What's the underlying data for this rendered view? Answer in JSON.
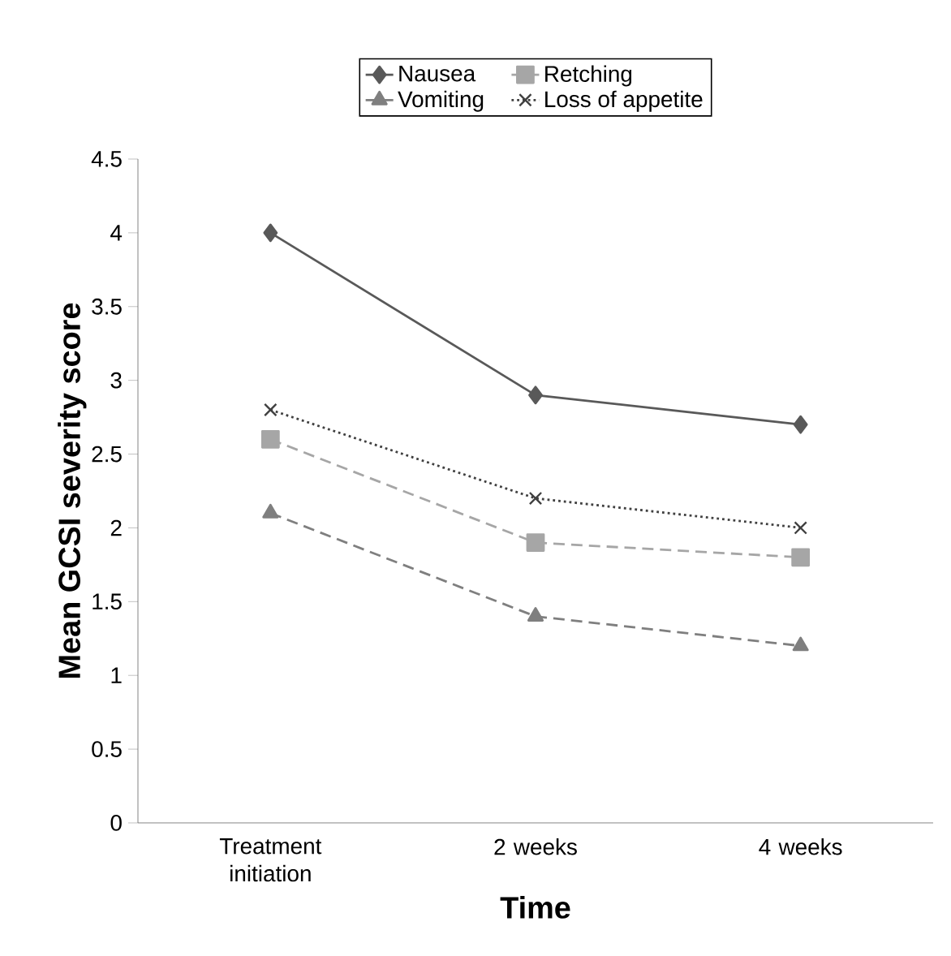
{
  "chart_data": {
    "type": "line",
    "xlabel": "Time",
    "ylabel": "Mean GCSI severity score",
    "categories": [
      "Treatment initiation",
      "2 weeks",
      "4 weeks"
    ],
    "series": [
      {
        "name": "Nausea",
        "color": "#595959",
        "marker": "diamond",
        "line_style": "solid",
        "values": [
          4,
          2.9,
          2.7
        ]
      },
      {
        "name": "Retching",
        "color": "#a6a6a6",
        "marker": "square",
        "line_style": "dashed",
        "values": [
          2.6,
          1.9,
          1.8
        ]
      },
      {
        "name": "Vomiting",
        "color": "#7f7f7f",
        "marker": "triangle",
        "line_style": "dashed",
        "values": [
          2.1,
          1.4,
          1.2
        ]
      },
      {
        "name": "Loss of appetite",
        "color": "#404040",
        "marker": "cross",
        "line_style": "dotted",
        "values": [
          2.8,
          2.2,
          2.0
        ]
      }
    ],
    "ylim": [
      0,
      4.5
    ],
    "yticks": [
      0,
      0.5,
      1,
      1.5,
      2,
      2.5,
      3,
      3.5,
      4,
      4.5
    ],
    "grid": false,
    "legend": "top"
  }
}
